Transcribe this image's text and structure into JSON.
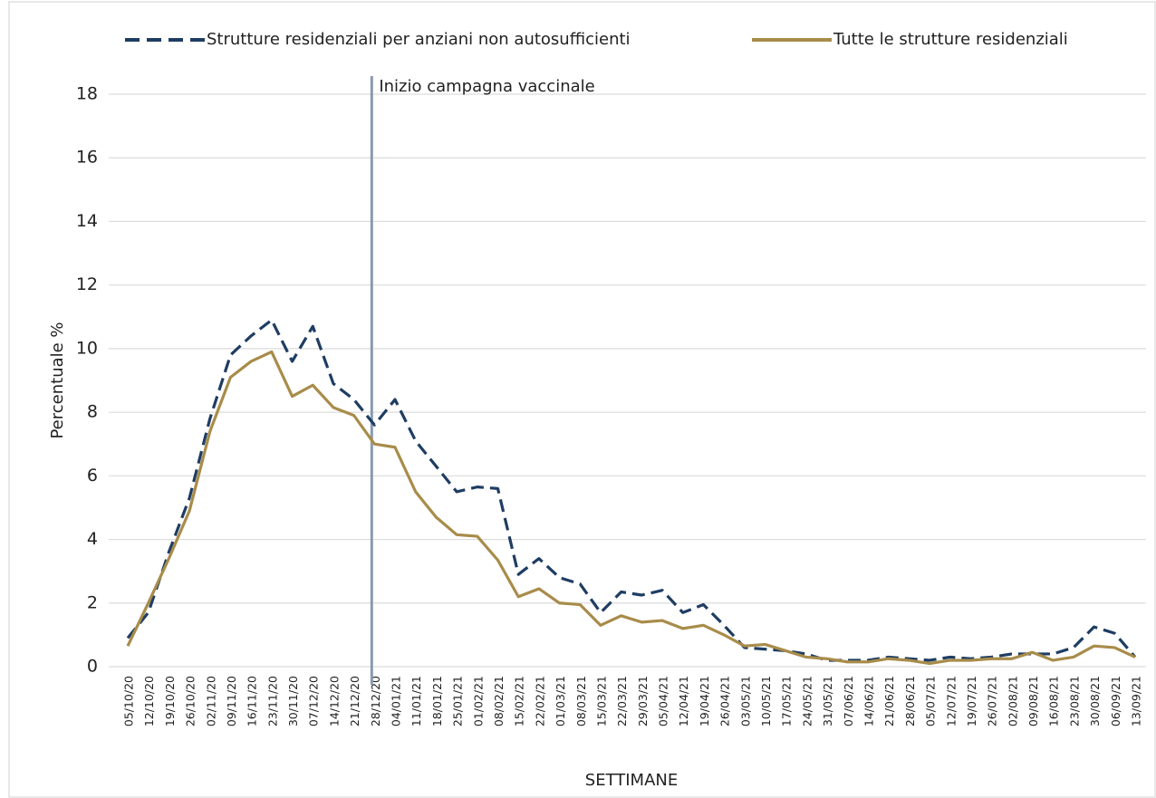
{
  "chart_data": {
    "type": "line",
    "x_label": "SETTIMANE",
    "y_label": "Percentuale %",
    "categories": [
      "05/10/20",
      "12/10/20",
      "19/10/20",
      "26/10/20",
      "02/11/20",
      "09/11/20",
      "16/11/20",
      "23/11/20",
      "30/11/20",
      "07/12/20",
      "14/12/20",
      "21/12/20",
      "28/12/20",
      "04/01/21",
      "11/01/21",
      "18/01/21",
      "25/01/21",
      "01/02/21",
      "08/02/21",
      "15/02/21",
      "22/02/21",
      "01/03/21",
      "08/03/21",
      "15/03/21",
      "22/03/21",
      "29/03/21",
      "05/04/21",
      "12/04/21",
      "19/04/21",
      "26/04/21",
      "03/05/21",
      "10/05/21",
      "17/05/21",
      "24/05/21",
      "31/05/21",
      "07/06/21",
      "14/06/21",
      "21/06/21",
      "28/06/21",
      "05/07/21",
      "12/07/21",
      "19/07/21",
      "26/07/21",
      "02/08/21",
      "09/08/21",
      "16/08/21",
      "23/08/21",
      "30/08/21",
      "06/09/21",
      "13/09/21"
    ],
    "series": [
      {
        "name": "Strutture residenziali per anziani non autosufficienti",
        "color": "#1f3d63",
        "dashed": true,
        "values": [
          0.9,
          1.7,
          3.6,
          5.3,
          7.8,
          9.8,
          10.4,
          10.9,
          9.6,
          10.7,
          8.9,
          8.4,
          7.6,
          8.4,
          7.1,
          6.3,
          5.5,
          5.65,
          5.6,
          2.9,
          3.4,
          2.8,
          2.6,
          1.7,
          2.35,
          2.25,
          2.4,
          1.7,
          1.95,
          1.3,
          0.6,
          0.55,
          0.5,
          0.4,
          0.2,
          0.2,
          0.2,
          0.3,
          0.25,
          0.2,
          0.3,
          0.25,
          0.3,
          0.4,
          0.4,
          0.4,
          0.6,
          1.25,
          1.05,
          0.3
        ]
      },
      {
        "name": "Tutte le strutture residenziali",
        "color": "#a88c4a",
        "dashed": false,
        "values": [
          0.65,
          2.0,
          3.4,
          4.9,
          7.4,
          9.1,
          9.6,
          9.9,
          8.5,
          8.85,
          8.15,
          7.9,
          7.0,
          6.9,
          5.5,
          4.7,
          4.15,
          4.1,
          3.35,
          2.2,
          2.45,
          2.0,
          1.95,
          1.3,
          1.6,
          1.4,
          1.45,
          1.2,
          1.3,
          1.0,
          0.65,
          0.7,
          0.5,
          0.3,
          0.25,
          0.15,
          0.15,
          0.25,
          0.2,
          0.1,
          0.2,
          0.2,
          0.25,
          0.25,
          0.45,
          0.2,
          0.3,
          0.65,
          0.6,
          0.3
        ]
      }
    ],
    "annotation": {
      "text": "Inizio campagna vaccinale",
      "category": "28/12/20",
      "color": "#8a9bb0"
    },
    "ylim": [
      0,
      18
    ],
    "yticks": [
      0,
      2,
      4,
      6,
      8,
      10,
      12,
      14,
      16,
      18
    ],
    "grid": true,
    "legend": "top"
  }
}
